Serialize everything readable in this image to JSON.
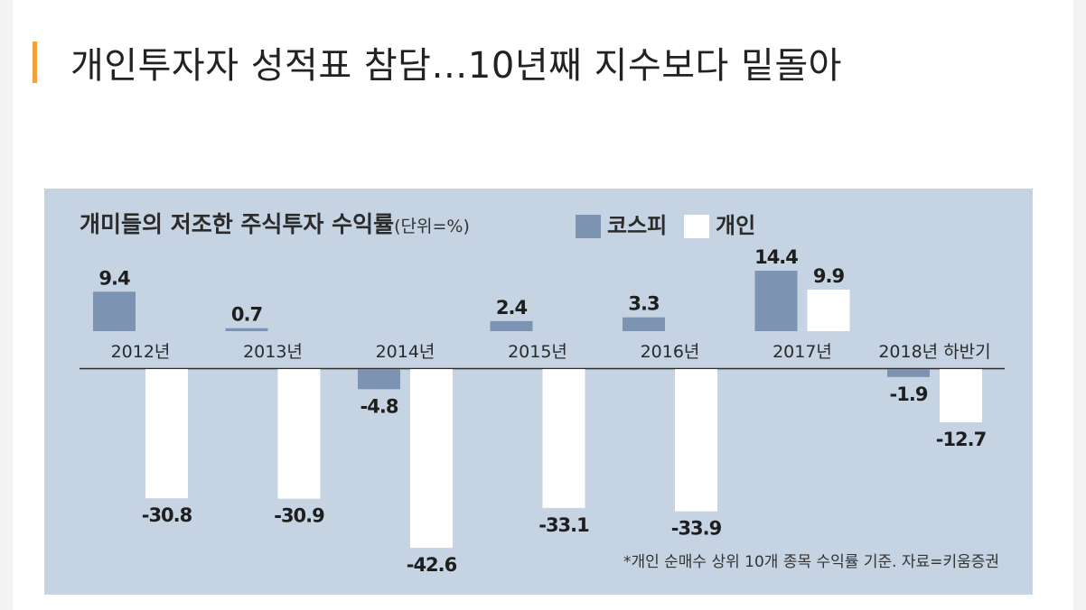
{
  "headline": "개인투자자 성적표 참담…10년째 지수보다 밑돌아",
  "colors": {
    "accent": "#f0a33a",
    "panel": "#c5d3e2",
    "kospi": "#7d93b2",
    "individual": "#ffffff"
  },
  "chart_data": {
    "type": "bar",
    "title": "개미들의 저조한 주식투자 수익률",
    "unit": "(단위=%)",
    "legend_placement": "top",
    "grid": false,
    "categories": [
      "2012년",
      "2013년",
      "2014년",
      "2015년",
      "2016년",
      "2017년",
      "2018년 하반기"
    ],
    "series": [
      {
        "name": "코스피",
        "color": "#7d93b2",
        "values": [
          9.4,
          0.7,
          -4.8,
          2.4,
          3.3,
          14.4,
          -1.9
        ],
        "labels": [
          "9.4",
          "0.7",
          "-4.8",
          "2.4",
          "3.3",
          "14.4",
          "-1.9"
        ]
      },
      {
        "name": "개인",
        "color": "#ffffff",
        "values": [
          -30.8,
          -30.9,
          -42.6,
          -33.1,
          -33.9,
          9.9,
          -12.7
        ],
        "labels": [
          "-30.8",
          "-30.9",
          "-42.6",
          "-33.1",
          "-33.9",
          "9.9",
          "-12.7"
        ]
      }
    ],
    "footnote": "*개인 순매수 상위 10개 종목 수익률 기준. 자료=키움증권"
  }
}
